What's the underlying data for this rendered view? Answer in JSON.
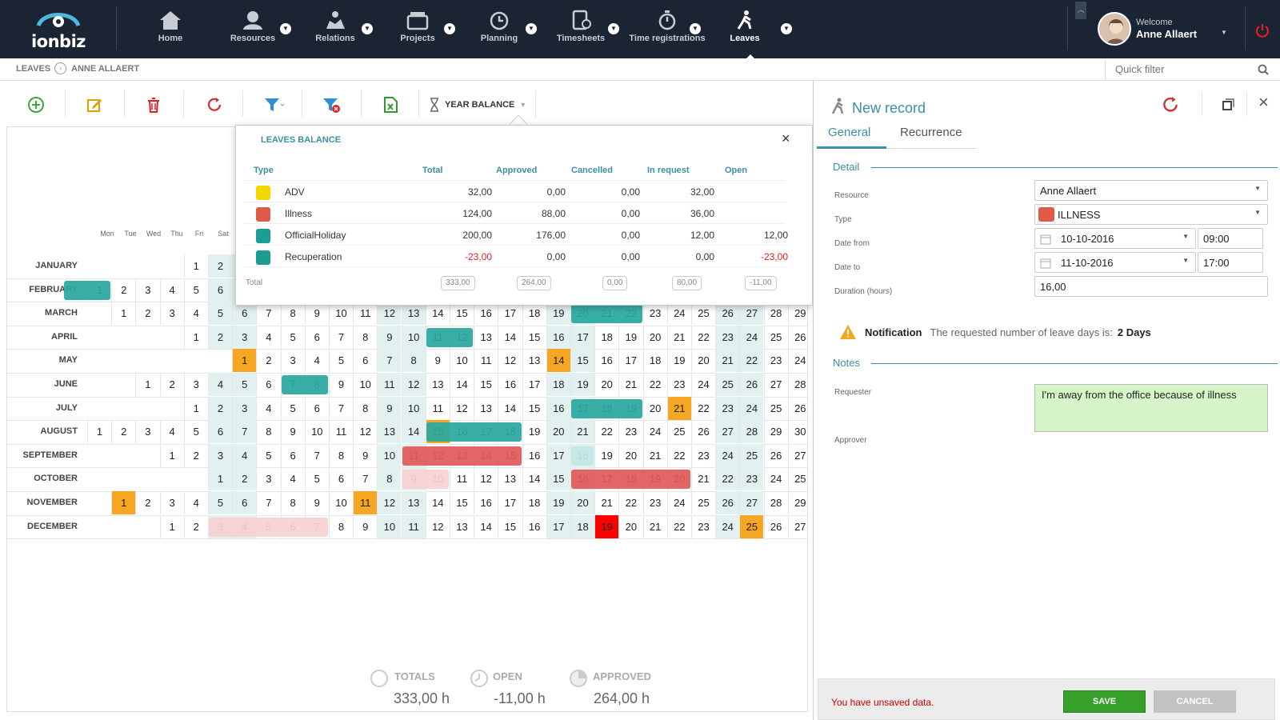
{
  "app": {
    "logo_text": "ionbiz"
  },
  "nav": {
    "items": [
      {
        "label": "Home",
        "icon": "home-icon"
      },
      {
        "label": "Resources",
        "icon": "resources-icon"
      },
      {
        "label": "Relations",
        "icon": "relations-icon"
      },
      {
        "label": "Projects",
        "icon": "projects-icon"
      },
      {
        "label": "Planning",
        "icon": "planning-icon"
      },
      {
        "label": "Timesheets",
        "icon": "timesheets-icon"
      },
      {
        "label": "Time registrations",
        "icon": "stopwatch-icon"
      },
      {
        "label": "Leaves",
        "icon": "walking-icon"
      }
    ]
  },
  "user": {
    "welcome": "Welcome",
    "name": "Anne Allaert"
  },
  "breadcrumb": {
    "section": "LEAVES",
    "item": "ANNE ALLAERT"
  },
  "search": {
    "placeholder": "Quick filter"
  },
  "toolbar": {
    "year_balance": "YEAR BALANCE"
  },
  "calendar": {
    "weekdays": [
      "Mon",
      "Tue",
      "Wed",
      "Thu",
      "Fri",
      "Sat"
    ],
    "months": [
      "JANUARY",
      "FEBRUARY",
      "MARCH",
      "APRIL",
      "MAY",
      "JUNE",
      "JULY",
      "AUGUST",
      "SEPTEMBER",
      "OCTOBER",
      "NOVEMBER",
      "DECEMBER"
    ],
    "rows": [
      {
        "start": 4,
        "len": 31
      },
      {
        "start": 0,
        "len": 29
      },
      {
        "start": 1,
        "len": 29
      },
      {
        "start": 4,
        "len": 26
      },
      {
        "start": 6,
        "len": 24
      },
      {
        "start": 2,
        "len": 28
      },
      {
        "start": 4,
        "len": 26
      },
      {
        "start": 0,
        "len": 30
      },
      {
        "start": 3,
        "len": 27
      },
      {
        "start": 5,
        "len": 25
      },
      {
        "start": 1,
        "len": 29
      },
      {
        "start": 3,
        "len": 27
      }
    ]
  },
  "balance": {
    "title": "LEAVES BALANCE",
    "headers": {
      "type": "Type",
      "total": "Total",
      "approved": "Approved",
      "cancelled": "Cancelled",
      "in_request": "In request",
      "open": "Open"
    },
    "rows": [
      {
        "type": "ADV",
        "color": "#f5d700",
        "total": "32,00",
        "approved": "0,00",
        "cancelled": "0,00",
        "in_request": "32,00",
        "open": ""
      },
      {
        "type": "Illness",
        "color": "#e05a4a",
        "total": "124,00",
        "approved": "88,00",
        "cancelled": "0,00",
        "in_request": "36,00",
        "open": ""
      },
      {
        "type": "OfficialHoliday",
        "color": "#1a9e94",
        "total": "200,00",
        "approved": "176,00",
        "cancelled": "0,00",
        "in_request": "12,00",
        "open": "12,00"
      },
      {
        "type": "Recuperation",
        "color": "#1a9e94",
        "total": "-23,00",
        "approved": "0,00",
        "cancelled": "0,00",
        "in_request": "0,00",
        "open": "-23,00"
      }
    ],
    "totals": {
      "label": "Total",
      "total": "333,00",
      "approved": "264,00",
      "cancelled": "0,00",
      "in_request": "80,00",
      "open": "-11,00"
    }
  },
  "summary": {
    "totals_label": "TOTALS",
    "totals_value": "333,00 h",
    "open_label": "OPEN",
    "open_value": "-11,00 h",
    "approved_label": "APPROVED",
    "approved_value": "264,00 h"
  },
  "record": {
    "title": "New record",
    "tabs": [
      "General",
      "Recurrence"
    ],
    "detail_title": "Detail",
    "fields": {
      "resource_label": "Resource",
      "resource": "Anne Allaert",
      "type_label": "Type",
      "type": "ILLNESS",
      "type_color": "#e05a4a",
      "date_from_label": "Date from",
      "date_from": "10-10-2016",
      "time_from": "09:00",
      "date_to_label": "Date to",
      "date_to": "11-10-2016",
      "time_to": "17:00",
      "duration_label": "Duration (hours)",
      "duration": "16,00"
    },
    "notification": {
      "title": "Notification",
      "text": "The requested number of leave days is:",
      "value": "2 Days"
    },
    "notes_title": "Notes",
    "requester_label": "Requester",
    "requester_note": "I'm away from the office because of illness",
    "approver_label": "Approver"
  },
  "footer": {
    "unsaved": "You have unsaved data.",
    "save": "SAVE",
    "cancel": "CANCEL"
  }
}
